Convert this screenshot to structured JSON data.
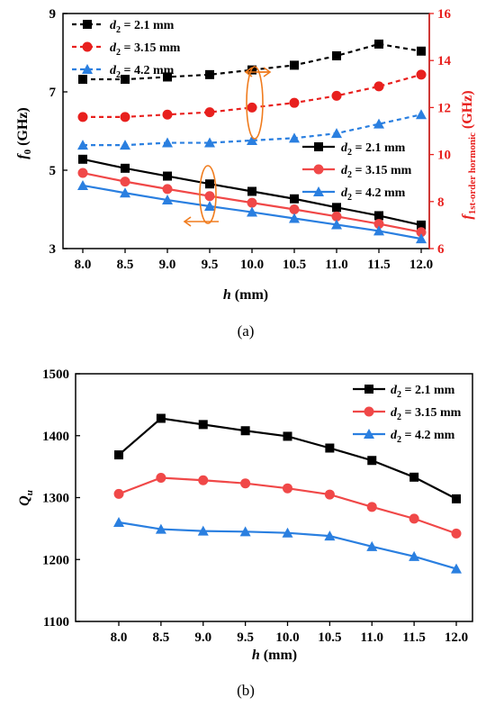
{
  "chart_data": [
    {
      "panel": "(a)",
      "caption": "(a)",
      "type": "line",
      "x": [
        8.0,
        8.5,
        9.0,
        9.5,
        10.0,
        10.5,
        11.0,
        11.5,
        12.0
      ],
      "x_ticks": [
        "8.0",
        "8.5",
        "9.0",
        "9.5",
        "10.0",
        "10.5",
        "11.0",
        "11.5",
        "12.0"
      ],
      "xlabel_italic": "h",
      "xlabel_unit": " (mm)",
      "ylabel_left_italic": "f",
      "ylabel_left_sub": "0",
      "ylabel_left_unit": " (GHz)",
      "ylabel_right_italic": "f",
      "ylabel_right_sub": "1st-order hormonic",
      "ylabel_right_unit": " (GHz)",
      "ylim_left": [
        3,
        9
      ],
      "yticks_left": [
        "3",
        "5",
        "7",
        "9"
      ],
      "ylim_right": [
        6,
        16
      ],
      "yticks_right": [
        "6",
        "8",
        "10",
        "12",
        "14",
        "16"
      ],
      "grid": false,
      "series": [
        {
          "legend_var": "d",
          "legend_sub": "2",
          "legend_val": " = 2.1 mm",
          "axis": "left",
          "style": "solid",
          "marker": "square",
          "color": "#000000",
          "values": [
            5.28,
            5.05,
            4.85,
            4.65,
            4.46,
            4.27,
            4.05,
            3.84,
            3.6
          ]
        },
        {
          "legend_var": "d",
          "legend_sub": "2",
          "legend_val": " = 3.15 mm",
          "axis": "left",
          "style": "solid",
          "marker": "circle",
          "color": "#f04848",
          "values": [
            4.93,
            4.71,
            4.52,
            4.34,
            4.17,
            4.0,
            3.82,
            3.63,
            3.42
          ]
        },
        {
          "legend_var": "d",
          "legend_sub": "2",
          "legend_val": " = 4.2 mm",
          "axis": "left",
          "style": "solid",
          "marker": "triangle",
          "color": "#2a7fe0",
          "values": [
            4.61,
            4.42,
            4.24,
            4.08,
            3.93,
            3.77,
            3.61,
            3.45,
            3.25
          ]
        },
        {
          "legend_var": "d",
          "legend_sub": "2",
          "legend_val": " = 2.1 mm",
          "axis": "right",
          "style": "dashed",
          "marker": "square",
          "color": "#000000",
          "values": [
            13.2,
            13.2,
            13.3,
            13.4,
            13.6,
            13.8,
            14.2,
            14.7,
            14.4
          ]
        },
        {
          "legend_var": "d",
          "legend_sub": "2",
          "legend_val": " = 3.15 mm",
          "axis": "right",
          "style": "dashed",
          "marker": "circle",
          "color": "#e8201e",
          "values": [
            11.6,
            11.6,
            11.7,
            11.8,
            12.0,
            12.2,
            12.5,
            12.9,
            13.4
          ]
        },
        {
          "legend_var": "d",
          "legend_sub": "2",
          "legend_val": " = 4.2 mm",
          "axis": "right",
          "style": "dashed",
          "marker": "triangle",
          "color": "#2a7fe0",
          "values": [
            10.4,
            10.4,
            10.5,
            10.5,
            10.6,
            10.7,
            10.9,
            11.3,
            11.7
          ]
        }
      ]
    },
    {
      "panel": "(b)",
      "caption": "(b)",
      "type": "line",
      "x": [
        8.0,
        8.5,
        9.0,
        9.5,
        10.0,
        10.5,
        11.0,
        11.5,
        12.0
      ],
      "x_ticks": [
        "8.0",
        "8.5",
        "9.0",
        "9.5",
        "10.0",
        "10.5",
        "11.0",
        "11.5",
        "12.0"
      ],
      "xlabel_italic": "h",
      "xlabel_unit": " (mm)",
      "ylabel_italic": "Q",
      "ylabel_sub": "u",
      "ylim": [
        1100,
        1500
      ],
      "yticks": [
        "1100",
        "1200",
        "1300",
        "1400",
        "1500"
      ],
      "grid": false,
      "series": [
        {
          "legend_var": "d",
          "legend_sub": "2",
          "legend_val": " = 2.1 mm",
          "style": "solid",
          "marker": "square",
          "color": "#000000",
          "values": [
            1369,
            1428,
            1418,
            1408,
            1399,
            1380,
            1360,
            1333,
            1298
          ]
        },
        {
          "legend_var": "d",
          "legend_sub": "2",
          "legend_val": " = 3.15 mm",
          "style": "solid",
          "marker": "circle",
          "color": "#f04848",
          "values": [
            1306,
            1332,
            1328,
            1323,
            1315,
            1305,
            1285,
            1266,
            1242
          ]
        },
        {
          "legend_var": "d",
          "legend_sub": "2",
          "legend_val": " = 4.2 mm",
          "style": "solid",
          "marker": "triangle",
          "color": "#2a7fe0",
          "values": [
            1260,
            1249,
            1246,
            1245,
            1243,
            1238,
            1221,
            1205,
            1185
          ]
        }
      ]
    }
  ]
}
